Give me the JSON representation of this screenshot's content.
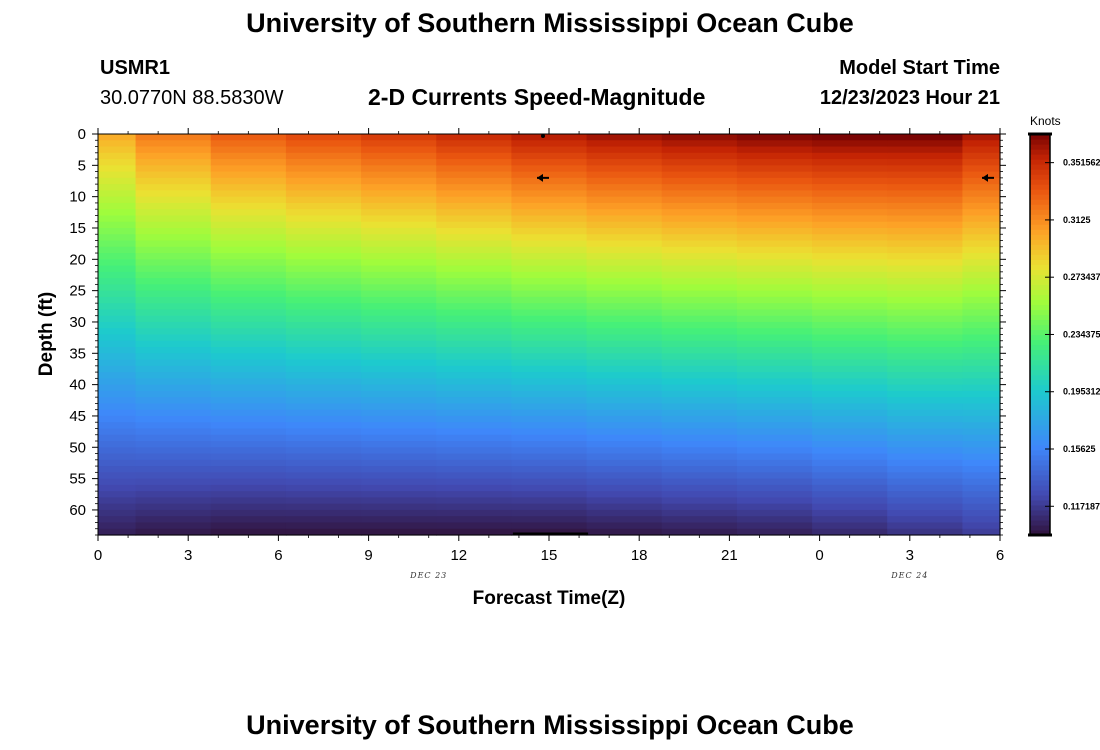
{
  "page": {
    "title_top": "University of Southern Mississippi Ocean Cube",
    "title_bottom": "University of Southern Mississippi Ocean Cube",
    "station_id": "USMR1",
    "station_coords": "30.0770N  88.5830W",
    "plot_subtitle": "2-D Currents Speed-Magnitude",
    "model_start_label": "Model Start Time",
    "model_start_value": "12/23/2023 Hour 21"
  },
  "chart_data": {
    "type": "heatmap",
    "title": "2-D Currents Speed-Magnitude",
    "xlabel": "Forecast Time(Z)",
    "ylabel": "Depth (ft)",
    "colorbar_label": "Knots",
    "x_tick_labels": [
      "0",
      "3",
      "6",
      "9",
      "12",
      "15",
      "18",
      "21",
      "0",
      "3",
      "6"
    ],
    "x_range": [
      0,
      30
    ],
    "date_labels": [
      {
        "text": "DEC 23",
        "x": 11
      },
      {
        "text": "DEC 24",
        "x": 27
      }
    ],
    "y_tick_labels": [
      "0",
      "5",
      "10",
      "15",
      "20",
      "25",
      "30",
      "35",
      "40",
      "45",
      "50",
      "55",
      "60"
    ],
    "y_range": [
      0,
      64
    ],
    "colorbar_ticks": [
      "0.117187",
      "0.15625",
      "0.195312",
      "0.234375",
      "0.273437",
      "0.3125",
      "0.351562"
    ],
    "colorbar_range": [
      0.0976,
      0.3711
    ],
    "time_columns": [
      0,
      2.5,
      5,
      7.5,
      10,
      12.5,
      15,
      17.5,
      20,
      22.5,
      25,
      27.5,
      30
    ],
    "surface_speed": [
      0.3,
      0.318,
      0.33,
      0.337,
      0.343,
      0.35,
      0.357,
      0.362,
      0.366,
      0.369,
      0.371,
      0.371,
      0.36
    ],
    "bottom_speed": [
      0.105,
      0.102,
      0.1,
      0.1,
      0.1,
      0.1,
      0.1,
      0.102,
      0.104,
      0.106,
      0.11,
      0.115,
      0.12
    ],
    "profile_shape": "speed decreases with depth from surface value to bottom value",
    "vector_arrows": [
      {
        "time": 15,
        "depth": 7,
        "direction": "west"
      },
      {
        "time": 29.8,
        "depth": 7,
        "direction": "west"
      }
    ]
  }
}
